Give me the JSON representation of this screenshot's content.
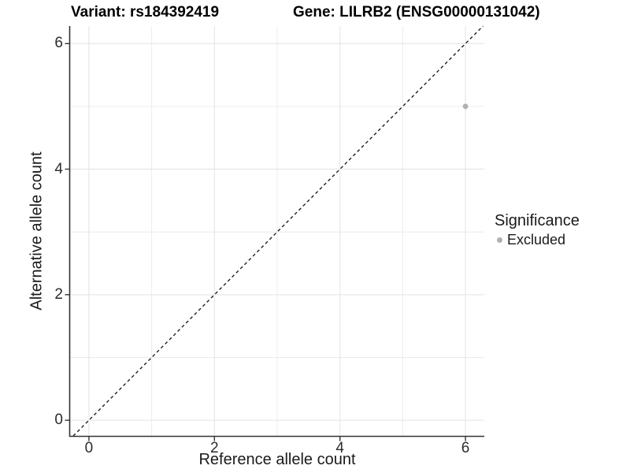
{
  "chart_data": {
    "type": "scatter",
    "titles": {
      "left": "Variant: rs184392419",
      "right": "Gene: LILRB2 (ENSG00000131042)"
    },
    "xlabel": "Reference allele count",
    "ylabel": "Alternative allele count",
    "xlim": [
      -0.3,
      6.3
    ],
    "ylim": [
      -0.25,
      6.28
    ],
    "x_ticks": [
      0,
      2,
      4,
      6
    ],
    "y_ticks": [
      0,
      2,
      4,
      6
    ],
    "grid_major": [
      0,
      2,
      4,
      6
    ],
    "grid_minor": [
      1,
      3,
      5
    ],
    "grid_on": true,
    "identity_line": {
      "equation": "y = x",
      "style": "dashed",
      "color": "#111111"
    },
    "points": [
      {
        "x": 6,
        "y": 5,
        "significance": "Excluded"
      }
    ],
    "legend": {
      "title": "Significance",
      "position": "right",
      "entries": [
        {
          "label": "Excluded",
          "color": "#b0b0b0"
        }
      ]
    },
    "colors": {
      "point": "#b0b0b0",
      "grid_major": "#e2e2e2",
      "grid_minor": "#ececec",
      "axis_line": "#333333",
      "background": "#ffffff"
    }
  }
}
